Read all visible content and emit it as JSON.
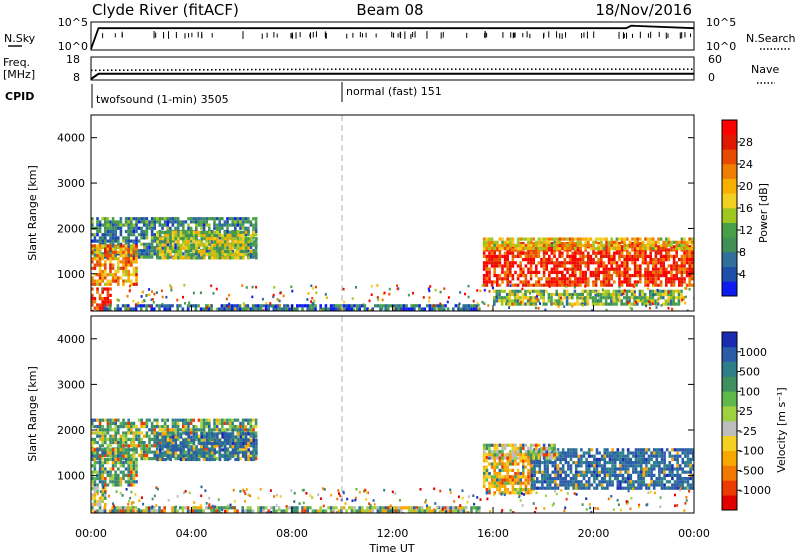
{
  "header": {
    "station": "Clyde River (fitACF)",
    "beam": "Beam 08",
    "date": "18/Nov/2016"
  },
  "noise_panel": {
    "left_label": "N.Sky",
    "left_ticks": [
      "10^5",
      "10^0"
    ],
    "right_label": "N.Search",
    "right_ticks": [
      "10^5",
      "10^0"
    ]
  },
  "freq_panel": {
    "left_label_1": "Freq.",
    "left_label_2": "[MHz]",
    "left_ticks": [
      "18",
      "8"
    ],
    "right_label": "Nave",
    "right_ticks": [
      "60",
      "0"
    ]
  },
  "cpid_panel": {
    "label": "CPID",
    "modes": [
      {
        "label": "twofsound (1-min) 3505",
        "start_hour": 0
      },
      {
        "label": "normal (fast) 151",
        "start_hour": 10
      }
    ]
  },
  "x_axis": {
    "label": "Time UT",
    "ticks": [
      "00:00",
      "04:00",
      "08:00",
      "12:00",
      "16:00",
      "20:00",
      "00:00"
    ]
  },
  "y_axis": {
    "label": "Slant Range [km]",
    "ticks": [
      "1000",
      "2000",
      "3000",
      "4000"
    ]
  },
  "power_colorbar": {
    "label": "Power [dB]",
    "ticks": [
      "4",
      "8",
      "12",
      "16",
      "20",
      "24",
      "28"
    ],
    "colors": [
      "#0d1bf0",
      "#1e4fa8",
      "#2f6f9a",
      "#3f8f57",
      "#47a047",
      "#9fc720",
      "#f2d020",
      "#f8b000",
      "#f07e00",
      "#e84a00",
      "#e01800",
      "#ff0000"
    ]
  },
  "velocity_colorbar": {
    "label": "Velocity [m s⁻¹]",
    "ticks": [
      "1000",
      "500",
      "100",
      "25",
      "-25",
      "-100",
      "-500",
      "-1000"
    ],
    "colors": [
      "#1a2bb0",
      "#2a5ca8",
      "#2e7f8a",
      "#3f9060",
      "#5fb84a",
      "#9fd040",
      "#bdbdbd",
      "#f4d020",
      "#f9a800",
      "#f37800",
      "#ed3a00",
      "#e00000"
    ]
  },
  "chart_data": [
    {
      "type": "line",
      "title": "",
      "xlabel": "",
      "ylabel": "N.Sky",
      "x_range_hours": [
        0,
        24
      ],
      "series": [
        {
          "name": "N.Sky",
          "style": "solid",
          "x": [
            0,
            0.3,
            2,
            6,
            10,
            14,
            18,
            21.3,
            21.5,
            24
          ],
          "y": [
            0,
            10000,
            10000,
            10000,
            10000,
            10000,
            10000,
            10000,
            30000,
            10000
          ]
        }
      ],
      "yscale": "log"
    },
    {
      "type": "line",
      "title": "",
      "xlabel": "",
      "ylabel": "Freq. [MHz]",
      "x_range_hours": [
        0,
        24
      ],
      "series": [
        {
          "name": "Freq.",
          "style": "solid",
          "x": [
            0,
            0.3,
            24
          ],
          "y": [
            8,
            10.5,
            10.5
          ]
        },
        {
          "name": "Nave",
          "style": "dotted",
          "x": [
            0,
            10,
            24
          ],
          "y": [
            25,
            28,
            28
          ]
        }
      ]
    },
    {
      "type": "heatmap",
      "title": "",
      "xlabel": "Time UT",
      "ylabel": "Slant Range [km]",
      "zlabel": "Power [dB]",
      "x_range_hours": [
        0,
        24
      ],
      "ylim": [
        180,
        4500
      ],
      "zlim": [
        0,
        30
      ],
      "regions": [
        {
          "t": [
            0.0,
            6.6
          ],
          "r": [
            1350,
            2250
          ],
          "value": 8
        },
        {
          "t": [
            0.0,
            1.8
          ],
          "r": [
            750,
            1650
          ],
          "value": 20
        },
        {
          "t": [
            0.0,
            0.8
          ],
          "r": [
            200,
            700
          ],
          "value": 26
        },
        {
          "t": [
            2.6,
            6.6
          ],
          "r": [
            1350,
            1950
          ],
          "value": 14
        },
        {
          "t": [
            0.5,
            15.5
          ],
          "r": [
            200,
            330
          ],
          "value": 6
        },
        {
          "t": [
            15.6,
            24.0
          ],
          "r": [
            750,
            1700
          ],
          "value": 26
        },
        {
          "t": [
            15.6,
            24.0
          ],
          "r": [
            1550,
            1800
          ],
          "value": 18
        },
        {
          "t": [
            16.0,
            23.5
          ],
          "r": [
            300,
            650
          ],
          "value": 12
        }
      ]
    },
    {
      "type": "heatmap",
      "title": "",
      "xlabel": "Time UT",
      "ylabel": "Slant Range [km]",
      "zlabel": "Velocity [m s⁻¹]",
      "x_range_hours": [
        0,
        24
      ],
      "ylim": [
        180,
        4500
      ],
      "zlim": [
        -1000,
        1000
      ],
      "regions": [
        {
          "t": [
            0.0,
            6.6
          ],
          "r": [
            1350,
            2250
          ],
          "value": 100
        },
        {
          "t": [
            0.0,
            1.8
          ],
          "r": [
            800,
            1600
          ],
          "value": 100
        },
        {
          "t": [
            0.0,
            0.6
          ],
          "r": [
            200,
            750
          ],
          "value": 0
        },
        {
          "t": [
            2.6,
            6.6
          ],
          "r": [
            1350,
            1950
          ],
          "value": 500
        },
        {
          "t": [
            0.5,
            15.5
          ],
          "r": [
            200,
            330
          ],
          "value": 50
        },
        {
          "t": [
            15.6,
            17.6
          ],
          "r": [
            600,
            1500
          ],
          "value": -100
        },
        {
          "t": [
            17.5,
            24.0
          ],
          "r": [
            750,
            1600
          ],
          "value": 500
        },
        {
          "t": [
            15.6,
            18.5
          ],
          "r": [
            1400,
            1700
          ],
          "value": 0
        }
      ]
    }
  ]
}
